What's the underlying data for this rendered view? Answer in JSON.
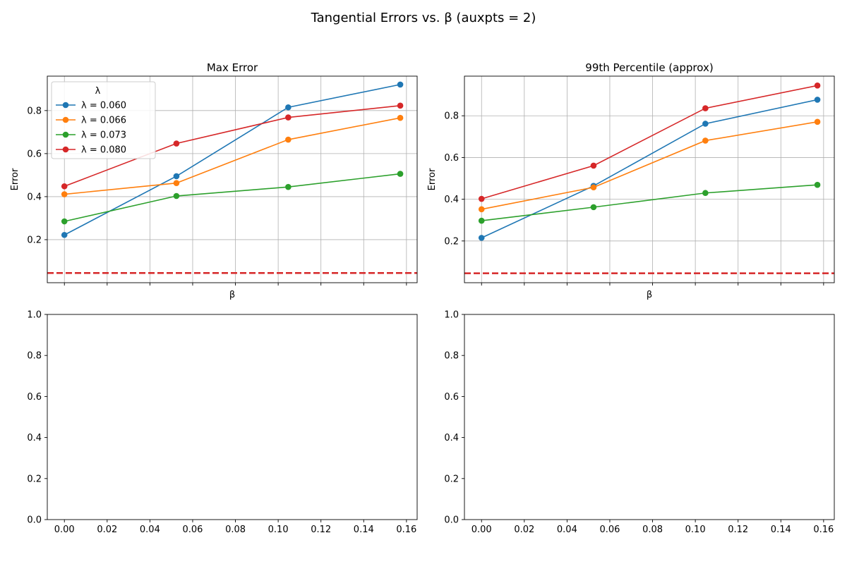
{
  "figure": {
    "suptitle": "Tangential Errors vs. β (auxpts = 2)"
  },
  "colors": {
    "threshold": "#d62728",
    "grid": "#b0b0b0",
    "axis": "#000000"
  },
  "chart_data": [
    {
      "type": "line",
      "title": "Max Error",
      "xlabel": "β",
      "ylabel": "Error",
      "xlim": [
        -0.008,
        0.165
      ],
      "ylim": [
        0.0,
        0.96
      ],
      "xticks": [
        0.0,
        0.02,
        0.04,
        0.06,
        0.08,
        0.1,
        0.12,
        0.14,
        0.16
      ],
      "xtick_labels_shown": false,
      "yticks": [
        0.2,
        0.4,
        0.6,
        0.8
      ],
      "ytick_labels": [
        "0.2",
        "0.4",
        "0.6",
        "0.8"
      ],
      "grid": true,
      "legend": {
        "title": "λ",
        "placement": "top-left"
      },
      "threshold": 0.045,
      "x": [
        0.0,
        0.0524,
        0.1047,
        0.1571
      ],
      "series": [
        {
          "name": "λ = 0.060",
          "color": "#1f77b4",
          "values": [
            0.222,
            0.495,
            0.815,
            0.921
          ]
        },
        {
          "name": "λ = 0.066",
          "color": "#ff7f0e",
          "values": [
            0.411,
            0.463,
            0.665,
            0.766
          ]
        },
        {
          "name": "λ = 0.073",
          "color": "#2ca02c",
          "values": [
            0.285,
            0.403,
            0.445,
            0.506
          ]
        },
        {
          "name": "λ = 0.080",
          "color": "#d62728",
          "values": [
            0.448,
            0.647,
            0.768,
            0.823
          ]
        }
      ]
    },
    {
      "type": "line",
      "title": "99th Percentile (approx)",
      "xlabel": "β",
      "ylabel": "Error",
      "xlim": [
        -0.008,
        0.165
      ],
      "ylim": [
        0.0,
        0.99
      ],
      "xticks": [
        0.0,
        0.02,
        0.04,
        0.06,
        0.08,
        0.1,
        0.12,
        0.14,
        0.16
      ],
      "xtick_labels_shown": false,
      "yticks": [
        0.2,
        0.4,
        0.6,
        0.8
      ],
      "ytick_labels": [
        "0.2",
        "0.4",
        "0.6",
        "0.8"
      ],
      "grid": true,
      "threshold": 0.045,
      "x": [
        0.0,
        0.0524,
        0.1047,
        0.1571
      ],
      "series": [
        {
          "name": "λ = 0.060",
          "color": "#1f77b4",
          "values": [
            0.215,
            0.464,
            0.762,
            0.877
          ]
        },
        {
          "name": "λ = 0.066",
          "color": "#ff7f0e",
          "values": [
            0.352,
            0.457,
            0.681,
            0.771
          ]
        },
        {
          "name": "λ = 0.073",
          "color": "#2ca02c",
          "values": [
            0.297,
            0.362,
            0.43,
            0.469
          ]
        },
        {
          "name": "λ = 0.080",
          "color": "#d62728",
          "values": [
            0.402,
            0.561,
            0.836,
            0.945
          ]
        }
      ]
    },
    {
      "type": "line",
      "title": "",
      "xlabel": "",
      "ylabel": "",
      "xlim": [
        -0.008,
        0.165
      ],
      "ylim": [
        0.0,
        1.0
      ],
      "xticks": [
        0.0,
        0.02,
        0.04,
        0.06,
        0.08,
        0.1,
        0.12,
        0.14,
        0.16
      ],
      "xtick_labels": [
        "0.00",
        "0.02",
        "0.04",
        "0.06",
        "0.08",
        "0.10",
        "0.12",
        "0.14",
        "0.16"
      ],
      "xtick_labels_shown": true,
      "yticks": [
        0.0,
        0.2,
        0.4,
        0.6,
        0.8,
        1.0
      ],
      "ytick_labels": [
        "0.0",
        "0.2",
        "0.4",
        "0.6",
        "0.8",
        "1.0"
      ],
      "grid": false,
      "series": []
    },
    {
      "type": "line",
      "title": "",
      "xlabel": "",
      "ylabel": "",
      "xlim": [
        -0.008,
        0.165
      ],
      "ylim": [
        0.0,
        1.0
      ],
      "xticks": [
        0.0,
        0.02,
        0.04,
        0.06,
        0.08,
        0.1,
        0.12,
        0.14,
        0.16
      ],
      "xtick_labels": [
        "0.00",
        "0.02",
        "0.04",
        "0.06",
        "0.08",
        "0.10",
        "0.12",
        "0.14",
        "0.16"
      ],
      "xtick_labels_shown": true,
      "yticks": [
        0.0,
        0.2,
        0.4,
        0.6,
        0.8,
        1.0
      ],
      "ytick_labels": [
        "0.0",
        "0.2",
        "0.4",
        "0.6",
        "0.8",
        "1.0"
      ],
      "grid": false,
      "series": []
    }
  ]
}
